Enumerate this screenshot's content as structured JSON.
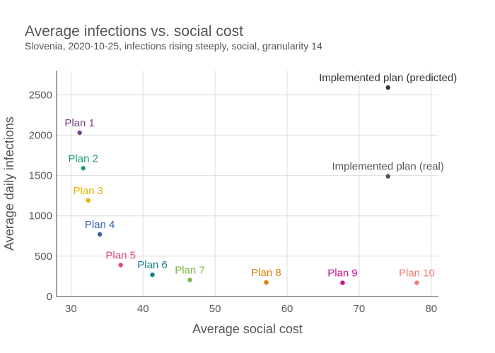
{
  "chart_data": {
    "type": "scatter",
    "title": "Average infections vs. social cost",
    "subtitle": "Slovenia, 2020-10-25, infections rising steeply, social, granularity 14",
    "xlabel": "Average social cost",
    "ylabel": "Average daily infections",
    "xlim": [
      28,
      81
    ],
    "ylim": [
      0,
      2800
    ],
    "xticks": [
      30,
      40,
      50,
      60,
      70,
      80
    ],
    "yticks": [
      0,
      500,
      1000,
      1500,
      2000,
      2500
    ],
    "grid": true,
    "legend": "none",
    "points": [
      {
        "label": "Plan 1",
        "x": 31.2,
        "y": 2030,
        "color": "#7b3f91"
      },
      {
        "label": "Plan 2",
        "x": 31.7,
        "y": 1590,
        "color": "#179c76"
      },
      {
        "label": "Plan 3",
        "x": 32.4,
        "y": 1190,
        "color": "#e6b000"
      },
      {
        "label": "Plan 4",
        "x": 34.0,
        "y": 770,
        "color": "#3665a8"
      },
      {
        "label": "Plan 5",
        "x": 36.9,
        "y": 390,
        "color": "#e0457b"
      },
      {
        "label": "Plan 6",
        "x": 41.3,
        "y": 270,
        "color": "#0f8088"
      },
      {
        "label": "Plan 7",
        "x": 46.5,
        "y": 205,
        "color": "#7ab648"
      },
      {
        "label": "Plan 8",
        "x": 57.1,
        "y": 175,
        "color": "#df7c0a"
      },
      {
        "label": "Plan 9",
        "x": 67.7,
        "y": 170,
        "color": "#c7148a"
      },
      {
        "label": "Plan 10",
        "x": 78.0,
        "y": 170,
        "color": "#f07b72"
      },
      {
        "label": "Implemented plan (real)",
        "x": 74.0,
        "y": 1490,
        "color": "#555555"
      },
      {
        "label": "Implemented plan (predicted)",
        "x": 74.0,
        "y": 2590,
        "color": "#333333"
      }
    ]
  }
}
